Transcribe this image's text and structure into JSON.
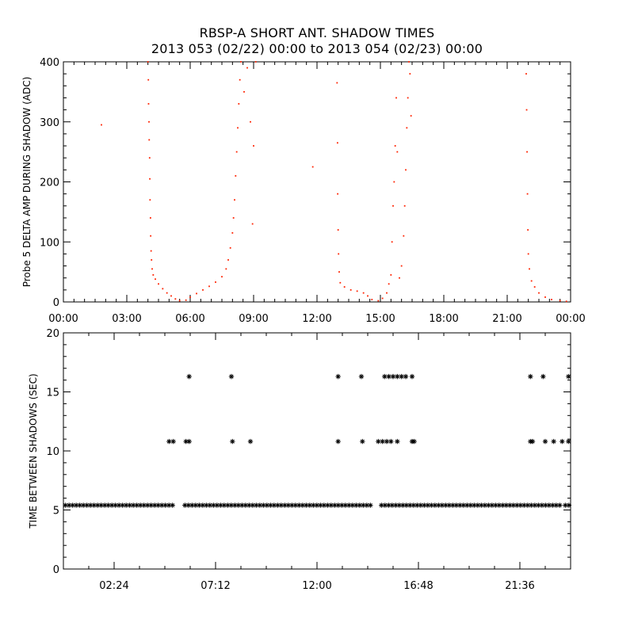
{
  "title": "RBSP-A SHORT ANT. SHADOW TIMES",
  "subtitle": "2013 053 (02/22) 00:00 to 2013 054 (02/23) 00:00",
  "colors": {
    "top_series": "#ff2200",
    "bottom_series": "#000000",
    "axes": "#000000"
  },
  "chart_data": [
    {
      "type": "scatter",
      "ylabel": "Probe 5 DELTA AMP DURING SHADOW (ADC)",
      "xlabel": "",
      "xlim": [
        0,
        24
      ],
      "ylim": [
        0,
        400
      ],
      "x_tick_labels": [
        "00:00",
        "03:00",
        "06:00",
        "09:00",
        "12:00",
        "15:00",
        "18:00",
        "21:00",
        "00:00"
      ],
      "x_tick_values": [
        0,
        3,
        6,
        9,
        12,
        15,
        18,
        21,
        24
      ],
      "y_tick_labels": [
        "0",
        "100",
        "200",
        "300",
        "400"
      ],
      "y_tick_values": [
        0,
        100,
        200,
        300,
        400
      ],
      "series": [
        {
          "marker": "dot",
          "color": "#ff2200",
          "points": [
            [
              1.8,
              295
            ],
            [
              4.0,
              400
            ],
            [
              4.02,
              370
            ],
            [
              4.03,
              330
            ],
            [
              4.05,
              300
            ],
            [
              4.06,
              270
            ],
            [
              4.08,
              240
            ],
            [
              4.09,
              205
            ],
            [
              4.1,
              170
            ],
            [
              4.12,
              140
            ],
            [
              4.13,
              110
            ],
            [
              4.15,
              85
            ],
            [
              4.17,
              70
            ],
            [
              4.2,
              55
            ],
            [
              4.25,
              45
            ],
            [
              4.35,
              38
            ],
            [
              4.5,
              30
            ],
            [
              4.7,
              22
            ],
            [
              4.9,
              15
            ],
            [
              5.1,
              10
            ],
            [
              5.3,
              5
            ],
            [
              5.5,
              2
            ],
            [
              5.8,
              3
            ],
            [
              6.0,
              8
            ],
            [
              6.3,
              14
            ],
            [
              6.6,
              20
            ],
            [
              6.9,
              26
            ],
            [
              7.2,
              33
            ],
            [
              7.5,
              42
            ],
            [
              7.7,
              55
            ],
            [
              7.8,
              70
            ],
            [
              7.9,
              90
            ],
            [
              8.0,
              115
            ],
            [
              8.05,
              140
            ],
            [
              8.1,
              170
            ],
            [
              8.15,
              210
            ],
            [
              8.2,
              250
            ],
            [
              8.25,
              290
            ],
            [
              8.3,
              330
            ],
            [
              8.35,
              370
            ],
            [
              8.4,
              400
            ],
            [
              8.55,
              350
            ],
            [
              8.7,
              390
            ],
            [
              8.85,
              300
            ],
            [
              9.0,
              260
            ],
            [
              9.1,
              400
            ],
            [
              8.95,
              130
            ],
            [
              11.8,
              225
            ],
            [
              12.95,
              365
            ],
            [
              12.97,
              265
            ],
            [
              12.98,
              180
            ],
            [
              13.0,
              120
            ],
            [
              13.02,
              80
            ],
            [
              13.05,
              50
            ],
            [
              13.1,
              32
            ],
            [
              13.3,
              25
            ],
            [
              13.6,
              20
            ],
            [
              13.9,
              18
            ],
            [
              14.2,
              15
            ],
            [
              14.4,
              10
            ],
            [
              14.6,
              4
            ],
            [
              14.9,
              2
            ],
            [
              15.1,
              6
            ],
            [
              15.3,
              15
            ],
            [
              15.4,
              30
            ],
            [
              15.5,
              45
            ],
            [
              15.55,
              100
            ],
            [
              15.6,
              160
            ],
            [
              15.65,
              200
            ],
            [
              15.7,
              260
            ],
            [
              15.75,
              340
            ],
            [
              15.8,
              250
            ],
            [
              15.9,
              40
            ],
            [
              16.0,
              60
            ],
            [
              16.1,
              110
            ],
            [
              16.15,
              160
            ],
            [
              16.2,
              220
            ],
            [
              16.25,
              290
            ],
            [
              16.3,
              340
            ],
            [
              16.35,
              400
            ],
            [
              16.4,
              380
            ],
            [
              16.45,
              310
            ],
            [
              21.9,
              380
            ],
            [
              21.92,
              320
            ],
            [
              21.94,
              250
            ],
            [
              21.96,
              180
            ],
            [
              21.98,
              120
            ],
            [
              22.0,
              80
            ],
            [
              22.05,
              55
            ],
            [
              22.15,
              35
            ],
            [
              22.3,
              25
            ],
            [
              22.5,
              15
            ],
            [
              22.8,
              8
            ],
            [
              23.1,
              4
            ],
            [
              23.5,
              2
            ],
            [
              23.8,
              1
            ]
          ]
        }
      ]
    },
    {
      "type": "scatter",
      "ylabel": "TIME BETWEEN SHADOWS (SEC)",
      "xlabel": "",
      "xlim": [
        0,
        24
      ],
      "ylim": [
        0,
        20
      ],
      "x_tick_labels": [
        "02:24",
        "07:12",
        "12:00",
        "16:48",
        "21:36"
      ],
      "x_tick_values": [
        2.4,
        7.2,
        12.0,
        16.8,
        21.6
      ],
      "y_tick_labels": [
        "0",
        "5",
        "10",
        "15",
        "20"
      ],
      "y_tick_values": [
        0,
        5,
        10,
        15,
        20
      ],
      "series": [
        {
          "marker": "asterisk",
          "color": "#000000",
          "baseline_value": 5.4,
          "baseline_ranges": [
            [
              0.1,
              5.2
            ],
            [
              5.75,
              14.55
            ],
            [
              15.05,
              23.55
            ],
            [
              23.75,
              23.95
            ]
          ],
          "points": [
            [
              5.0,
              10.8
            ],
            [
              5.2,
              10.8
            ],
            [
              5.8,
              10.8
            ],
            [
              5.95,
              10.8
            ],
            [
              5.95,
              16.3
            ],
            [
              7.95,
              16.3
            ],
            [
              8.0,
              10.8
            ],
            [
              8.85,
              10.8
            ],
            [
              13.0,
              16.3
            ],
            [
              13.0,
              10.8
            ],
            [
              14.1,
              16.3
            ],
            [
              14.15,
              10.8
            ],
            [
              14.9,
              10.8
            ],
            [
              15.1,
              10.8
            ],
            [
              15.3,
              10.8
            ],
            [
              15.5,
              10.8
            ],
            [
              15.8,
              10.8
            ],
            [
              15.2,
              16.3
            ],
            [
              15.4,
              16.3
            ],
            [
              15.6,
              16.3
            ],
            [
              15.8,
              16.3
            ],
            [
              16.0,
              16.3
            ],
            [
              16.2,
              16.3
            ],
            [
              16.5,
              16.3
            ],
            [
              16.5,
              10.8
            ],
            [
              16.6,
              10.8
            ],
            [
              22.1,
              16.3
            ],
            [
              22.1,
              10.8
            ],
            [
              22.2,
              10.8
            ],
            [
              22.7,
              16.3
            ],
            [
              22.8,
              10.8
            ],
            [
              23.2,
              10.8
            ],
            [
              23.6,
              10.8
            ],
            [
              23.9,
              10.8
            ],
            [
              23.9,
              16.3
            ]
          ]
        }
      ]
    }
  ]
}
